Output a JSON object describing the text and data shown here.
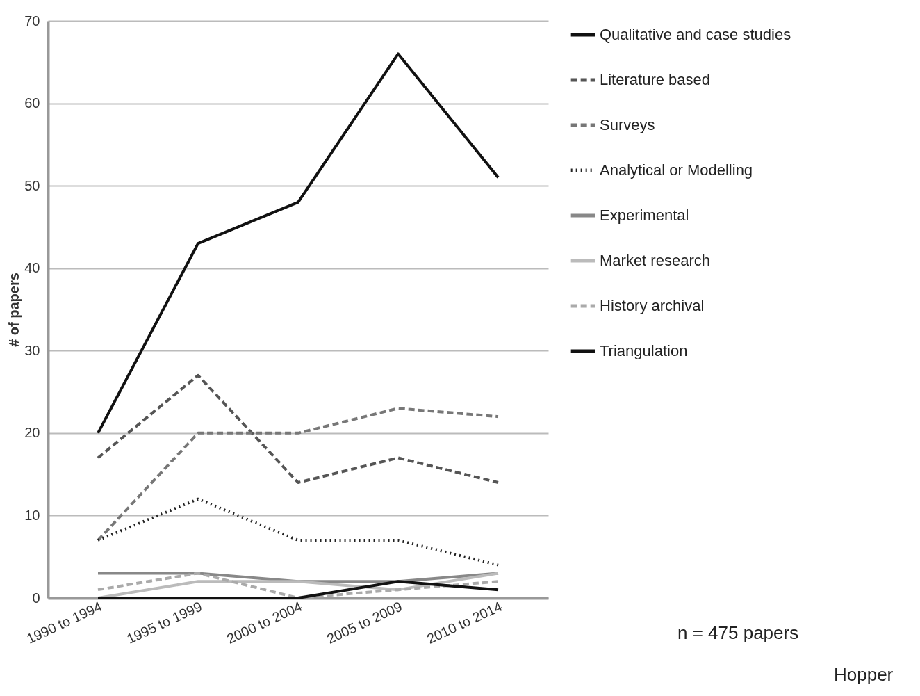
{
  "chart_data": {
    "type": "line",
    "ylabel": "# of papers",
    "categories": [
      "1990 to 1994",
      "1995 to 1999",
      "2000 to 2004",
      "2005 to 2009",
      "2010 to 2014"
    ],
    "series": [
      {
        "name": "Qualitative and case studies",
        "color": "#111111",
        "line_style": "solid",
        "values": [
          20,
          43,
          48,
          66,
          51
        ]
      },
      {
        "name": "Literature based",
        "color": "#555555",
        "line_style": "dashed",
        "values": [
          17,
          27,
          14,
          17,
          14
        ]
      },
      {
        "name": "Surveys",
        "color": "#777777",
        "line_style": "dashed",
        "values": [
          7,
          20,
          20,
          23,
          22
        ]
      },
      {
        "name": "Analytical or Modelling",
        "color": "#222222",
        "line_style": "dotted",
        "values": [
          7,
          12,
          7,
          7,
          4
        ]
      },
      {
        "name": "Experimental",
        "color": "#888888",
        "line_style": "solid",
        "values": [
          3,
          3,
          2,
          2,
          3
        ]
      },
      {
        "name": "Market research",
        "color": "#bbbbbb",
        "line_style": "solid",
        "values": [
          0,
          2,
          2,
          1,
          3
        ]
      },
      {
        "name": "History archival",
        "color": "#aaaaaa",
        "line_style": "dashed",
        "values": [
          1,
          3,
          0,
          1,
          2
        ]
      },
      {
        "name": "Triangulation",
        "color": "#111111",
        "line_style": "solid",
        "values": [
          0,
          0,
          0,
          2,
          1
        ]
      }
    ],
    "ylim": [
      0,
      70
    ],
    "yticks": [
      0,
      10,
      20,
      30,
      40,
      50,
      60,
      70
    ],
    "grid": "y",
    "legend": "right",
    "marker": "none",
    "annotations": [
      "n = 475 papers",
      "Hopper"
    ]
  }
}
